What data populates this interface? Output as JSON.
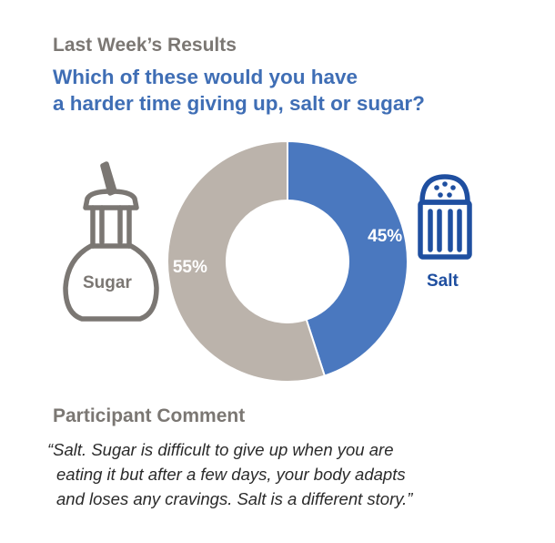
{
  "header": {
    "kicker": "Last Week’s Results",
    "question_line1": "Which of these would you have",
    "question_line2": "a harder time giving up, salt or sugar?"
  },
  "chart_data": {
    "type": "pie",
    "title": "Which of these would you have a harder time giving up, salt or sugar?",
    "series": [
      {
        "name": "Salt",
        "value": 45,
        "label": "45%",
        "color": "#4a78bf"
      },
      {
        "name": "Sugar",
        "value": 55,
        "label": "55%",
        "color": "#bbb3ab"
      }
    ]
  },
  "icons": {
    "sugar": {
      "name": "sugar-dispenser-icon",
      "label": "Sugar",
      "color": "#7b7773"
    },
    "salt": {
      "name": "salt-shaker-icon",
      "label": "Salt",
      "color": "#1f4fa0"
    }
  },
  "comment": {
    "title": "Participant Comment",
    "line1": "“Salt. Sugar is difficult to give up when you are",
    "line2": "eating it but after a few days, your body adapts",
    "line3": "and loses any cravings. Salt is a different story.”"
  }
}
